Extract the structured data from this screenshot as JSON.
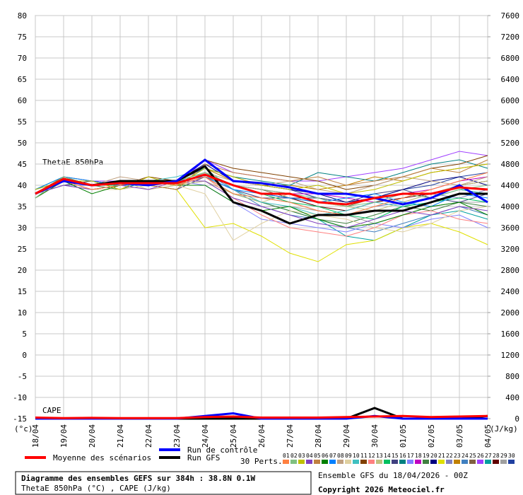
{
  "chart_data": {
    "type": "line",
    "title": "Diagramme des ensembles GEFS sur 384h : 38.8N 0.1W",
    "subtitle": "ThetaE 850hPa (°C) , CAPE (J/kg)",
    "run_info": "Ensemble GFS du 18/04/2026 - 00Z",
    "copyright": "Copyright 2026 Meteociel.fr",
    "label_thetae": "ThetaE 850hPa",
    "label_cape": "CAPE",
    "ylabel": "(°c)",
    "y2label": "(J/kg)",
    "perts_label": "30 Perts.",
    "x": [
      "18/04",
      "19/04",
      "20/04",
      "21/04",
      "22/04",
      "23/04",
      "24/04",
      "25/04",
      "26/04",
      "27/04",
      "28/04",
      "29/04",
      "30/04",
      "01/05",
      "02/05",
      "03/05",
      "04/05"
    ],
    "ylim": [
      -15,
      80
    ],
    "yticks": [
      -15,
      -10,
      -5,
      0,
      5,
      10,
      15,
      20,
      25,
      30,
      35,
      40,
      45,
      50,
      55,
      60,
      65,
      70,
      75,
      80
    ],
    "y2lim": [
      0,
      7600
    ],
    "y2ticks": [
      0,
      400,
      800,
      1200,
      1600,
      2000,
      2400,
      2800,
      3200,
      3600,
      4000,
      4400,
      4800,
      5200,
      5600,
      6000,
      6400,
      6800,
      7200,
      7600
    ],
    "grid": true,
    "series": [
      {
        "name": "Moyenne des scénarios",
        "color": "#ff0000",
        "values": [
          38,
          41.5,
          40,
          40.5,
          40.5,
          40.5,
          42.5,
          40,
          38,
          38,
          36,
          35.5,
          37,
          38,
          38,
          39.5,
          39
        ],
        "cape": [
          20,
          10,
          15,
          10,
          10,
          10,
          30,
          40,
          20,
          20,
          20,
          30,
          40,
          50,
          30,
          40,
          50
        ]
      },
      {
        "name": "Run de contrôle",
        "color": "#0000ff",
        "values": [
          38,
          41,
          40,
          40.5,
          40,
          41,
          46,
          41,
          40.5,
          39.5,
          38,
          38,
          37,
          35.5,
          37,
          40,
          36
        ],
        "cape": [
          0,
          0,
          0,
          0,
          0,
          0,
          50,
          100,
          0,
          0,
          0,
          0,
          50,
          0,
          0,
          0,
          0
        ]
      },
      {
        "name": "Run GFS",
        "color": "#000000",
        "values": [
          38,
          41.5,
          40,
          41,
          41,
          41,
          44.5,
          36,
          34,
          31,
          33,
          33,
          34,
          34,
          36,
          38,
          38
        ],
        "cape": [
          0,
          0,
          0,
          0,
          0,
          0,
          0,
          0,
          0,
          0,
          0,
          0,
          200,
          0,
          0,
          0,
          50
        ]
      },
      {
        "name": "01",
        "color": "#ff8040",
        "values": [
          38,
          41,
          39,
          40,
          41,
          40,
          42,
          38,
          37,
          36,
          34,
          33,
          35,
          37,
          39,
          41,
          43
        ]
      },
      {
        "name": "02",
        "color": "#80c080",
        "values": [
          37,
          42,
          40,
          41,
          40,
          41,
          43,
          40,
          39,
          38,
          37,
          35,
          36,
          38,
          37,
          39,
          40
        ]
      },
      {
        "name": "03",
        "color": "#c0c000",
        "values": [
          39,
          41,
          41,
          39,
          42,
          40,
          44,
          42,
          40,
          39,
          40,
          38,
          39,
          41,
          43,
          44,
          45
        ]
      },
      {
        "name": "04",
        "color": "#8040c0",
        "values": [
          38,
          40,
          39,
          40,
          39,
          41,
          41,
          37,
          35,
          33,
          31,
          30,
          32,
          34,
          33,
          35,
          34
        ]
      },
      {
        "name": "05",
        "color": "#c08040",
        "values": [
          38,
          42,
          40,
          41,
          40,
          39,
          45,
          43,
          42,
          41,
          42,
          40,
          41,
          42,
          44,
          43,
          46
        ]
      },
      {
        "name": "06",
        "color": "#008000",
        "values": [
          37,
          41,
          38,
          40,
          41,
          40,
          40,
          36,
          34,
          35,
          32,
          30,
          31,
          33,
          35,
          36,
          33
        ]
      },
      {
        "name": "07",
        "color": "#0080ff",
        "values": [
          39,
          42,
          41,
          40,
          40,
          41,
          42,
          39,
          38,
          37,
          36,
          37,
          38,
          36,
          35,
          38,
          37
        ]
      },
      {
        "name": "08",
        "color": "#c0a080",
        "values": [
          38,
          41,
          40,
          42,
          41,
          40,
          43,
          41,
          40,
          41,
          39,
          38,
          40,
          42,
          41,
          40,
          42
        ]
      },
      {
        "name": "09",
        "color": "#e0d0a0",
        "values": [
          38,
          40,
          39,
          39,
          40,
          40,
          38,
          27,
          31,
          34,
          33,
          32,
          30,
          29,
          31,
          34,
          35
        ]
      },
      {
        "name": "10",
        "color": "#40c0c0",
        "values": [
          39,
          41,
          40,
          41,
          41,
          42,
          44,
          39,
          36,
          35,
          33,
          34,
          36,
          35,
          37,
          39,
          38
        ]
      },
      {
        "name": "11",
        "color": "#804000",
        "values": [
          38,
          42,
          41,
          40,
          42,
          41,
          46,
          44,
          43,
          42,
          41,
          39,
          40,
          42,
          44,
          45,
          47
        ]
      },
      {
        "name": "12",
        "color": "#ff8080",
        "values": [
          37,
          41,
          39,
          40,
          40,
          40,
          42,
          37,
          33,
          30,
          29,
          28,
          30,
          33,
          34,
          32,
          31
        ]
      },
      {
        "name": "13",
        "color": "#c0c080",
        "values": [
          38,
          41,
          40,
          41,
          39,
          40,
          41,
          38,
          36,
          38,
          36,
          35,
          34,
          36,
          38,
          40,
          41
        ]
      },
      {
        "name": "14",
        "color": "#00c060",
        "values": [
          39,
          42,
          40,
          40,
          41,
          41,
          43,
          40,
          38,
          36,
          35,
          33,
          32,
          35,
          36,
          37,
          36
        ]
      },
      {
        "name": "15",
        "color": "#404080",
        "values": [
          38,
          40,
          41,
          40,
          40,
          39,
          42,
          39,
          37,
          37,
          37,
          36,
          38,
          39,
          37,
          36,
          38
        ]
      },
      {
        "name": "16",
        "color": "#008080",
        "values": [
          38,
          41,
          40,
          41,
          41,
          40,
          44,
          42,
          41,
          40,
          43,
          42,
          41,
          43,
          45,
          46,
          44
        ]
      },
      {
        "name": "17",
        "color": "#8080ff",
        "values": [
          39,
          41,
          39,
          40,
          40,
          41,
          40,
          36,
          32,
          31,
          30,
          29,
          31,
          30,
          32,
          33,
          30
        ]
      },
      {
        "name": "18",
        "color": "#c000c0",
        "values": [
          38,
          42,
          40,
          41,
          40,
          40,
          43,
          40,
          39,
          38,
          38,
          37,
          36,
          38,
          39,
          41,
          42
        ]
      },
      {
        "name": "19",
        "color": "#408040",
        "values": [
          37,
          41,
          40,
          39,
          41,
          40,
          42,
          38,
          36,
          34,
          32,
          31,
          33,
          35,
          34,
          36,
          35
        ]
      },
      {
        "name": "20",
        "color": "#000080",
        "values": [
          38,
          41,
          41,
          40,
          40,
          41,
          45,
          41,
          40,
          39,
          38,
          36,
          37,
          39,
          41,
          42,
          40
        ]
      },
      {
        "name": "21",
        "color": "#e0e000",
        "values": [
          39,
          42,
          40,
          41,
          40,
          39,
          30,
          31,
          28,
          24,
          22,
          26,
          27,
          30,
          31,
          29,
          26
        ]
      },
      {
        "name": "22",
        "color": "#8080c0",
        "values": [
          38,
          40,
          40,
          40,
          41,
          41,
          41,
          38,
          37,
          36,
          34,
          33,
          35,
          36,
          38,
          37,
          39
        ]
      },
      {
        "name": "23",
        "color": "#c08000",
        "values": [
          38,
          41,
          39,
          40,
          40,
          40,
          44,
          41,
          40,
          40,
          39,
          40,
          42,
          41,
          43,
          44,
          45
        ]
      },
      {
        "name": "24",
        "color": "#4080c0",
        "values": [
          37,
          42,
          40,
          41,
          41,
          40,
          43,
          39,
          35,
          33,
          32,
          30,
          29,
          31,
          33,
          35,
          33
        ]
      },
      {
        "name": "25",
        "color": "#806040",
        "values": [
          38,
          41,
          40,
          40,
          40,
          41,
          42,
          40,
          39,
          37,
          36,
          35,
          37,
          38,
          37,
          39,
          38
        ]
      },
      {
        "name": "26",
        "color": "#a040ff",
        "values": [
          39,
          41,
          41,
          41,
          41,
          40,
          46,
          43,
          42,
          41,
          41,
          42,
          43,
          44,
          46,
          48,
          47
        ]
      },
      {
        "name": "27",
        "color": "#00a0a0",
        "values": [
          38,
          40,
          39,
          40,
          40,
          40,
          42,
          38,
          36,
          34,
          32,
          28,
          27,
          30,
          33,
          34,
          32
        ]
      },
      {
        "name": "28",
        "color": "#600000",
        "values": [
          38,
          42,
          40,
          40,
          41,
          41,
          43,
          40,
          38,
          37,
          35,
          34,
          36,
          37,
          38,
          40,
          41
        ]
      },
      {
        "name": "29",
        "color": "#a0a0a0",
        "values": [
          39,
          41,
          40,
          40,
          40,
          40,
          41,
          37,
          35,
          35,
          34,
          33,
          31,
          33,
          35,
          36,
          36
        ]
      },
      {
        "name": "30",
        "color": "#2040a0",
        "values": [
          38,
          41,
          40,
          41,
          40,
          41,
          44,
          42,
          40,
          39,
          37,
          36,
          37,
          39,
          40,
          42,
          43
        ]
      }
    ]
  }
}
